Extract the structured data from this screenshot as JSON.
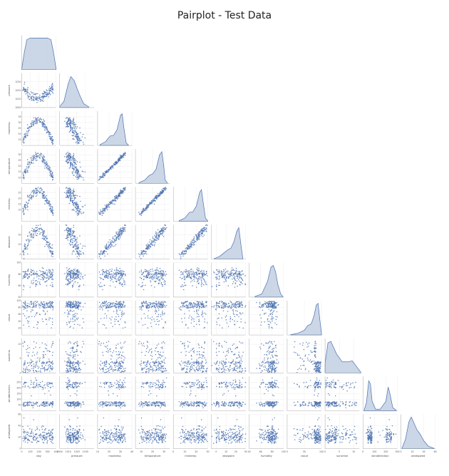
{
  "chart_data": {
    "type": "pairplot",
    "layout": "corner",
    "title": "Pairplot - Test Data",
    "variables": [
      "day",
      "pressure",
      "maxtemp",
      "temparature",
      "mintemp",
      "dewpoint",
      "humidity",
      "cloud",
      "sunshine",
      "winddirection",
      "windspeed"
    ],
    "ranges": {
      "day": [
        0,
        400
      ],
      "pressure": [
        1000,
        1040
      ],
      "maxtemp": [
        10,
        40
      ],
      "temparature": [
        5,
        35
      ],
      "mintemp": [
        0,
        30
      ],
      "dewpoint": [
        -5,
        30
      ],
      "humidity": [
        40,
        100
      ],
      "cloud": [
        0,
        100
      ],
      "sunshine": [
        0,
        12
      ],
      "winddirection": [
        0,
        300
      ],
      "windspeed": [
        0,
        60
      ]
    },
    "x_ticks": {
      "day": [
        0,
        100,
        200,
        300,
        400
      ],
      "pressure": [
        1000,
        1010,
        1020,
        1030
      ],
      "maxtemp": [
        10,
        20,
        30,
        40
      ],
      "temparature": [
        10,
        20,
        30
      ],
      "mintemp": [
        0,
        10,
        20,
        30
      ],
      "dewpoint": [
        0,
        10,
        20,
        30
      ],
      "humidity": [
        40,
        60,
        80,
        100
      ],
      "cloud": [
        0,
        50,
        100
      ],
      "sunshine": [
        0,
        5,
        10
      ],
      "winddirection": [
        0,
        100,
        200,
        300
      ],
      "windspeed": [
        0,
        20,
        40,
        60
      ]
    },
    "y_ticks": {
      "pressure": [
        1000,
        1010,
        1020,
        1030
      ],
      "maxtemp": [
        15,
        20,
        25,
        30,
        35
      ],
      "temparature": [
        10,
        15,
        20,
        25,
        30
      ],
      "mintemp": [
        10,
        15,
        20,
        25
      ],
      "dewpoint": [
        0,
        10,
        20
      ],
      "humidity": [
        40,
        60,
        80,
        100
      ],
      "cloud": [
        20,
        40,
        60,
        80,
        100
      ],
      "sunshine": [
        0,
        5,
        10
      ],
      "winddirection": [
        50,
        100,
        150,
        200,
        250
      ],
      "windspeed": [
        0,
        20,
        40,
        60
      ]
    },
    "diagonal_kde": {
      "day": [
        [
          0,
          0.02
        ],
        [
          30,
          0.55
        ],
        [
          60,
          0.95
        ],
        [
          100,
          1.0
        ],
        [
          200,
          1.0
        ],
        [
          300,
          1.0
        ],
        [
          340,
          0.95
        ],
        [
          370,
          0.55
        ],
        [
          400,
          0.02
        ]
      ],
      "pressure": [
        [
          1000,
          0.03
        ],
        [
          1005,
          0.2
        ],
        [
          1010,
          0.75
        ],
        [
          1013,
          0.98
        ],
        [
          1017,
          0.85
        ],
        [
          1020,
          0.62
        ],
        [
          1024,
          0.35
        ],
        [
          1028,
          0.12
        ],
        [
          1034,
          0.02
        ]
      ],
      "maxtemp": [
        [
          12,
          0.02
        ],
        [
          17,
          0.12
        ],
        [
          21,
          0.3
        ],
        [
          24,
          0.32
        ],
        [
          27,
          0.5
        ],
        [
          30,
          0.95
        ],
        [
          31.5,
          1.0
        ],
        [
          33,
          0.55
        ],
        [
          35,
          0.08
        ],
        [
          37,
          0.01
        ]
      ],
      "temparature": [
        [
          8,
          0.02
        ],
        [
          13,
          0.1
        ],
        [
          17,
          0.25
        ],
        [
          20,
          0.3
        ],
        [
          23,
          0.45
        ],
        [
          26,
          0.9
        ],
        [
          28,
          1.0
        ],
        [
          29.5,
          0.6
        ],
        [
          31,
          0.1
        ],
        [
          33,
          0.01
        ]
      ],
      "mintemp": [
        [
          5,
          0.02
        ],
        [
          10,
          0.1
        ],
        [
          14,
          0.28
        ],
        [
          17,
          0.3
        ],
        [
          20,
          0.48
        ],
        [
          23,
          0.92
        ],
        [
          24.5,
          1.0
        ],
        [
          26,
          0.6
        ],
        [
          28,
          0.1
        ],
        [
          30,
          0.01
        ]
      ],
      "dewpoint": [
        [
          -2,
          0.02
        ],
        [
          3,
          0.08
        ],
        [
          8,
          0.2
        ],
        [
          12,
          0.3
        ],
        [
          15,
          0.35
        ],
        [
          18,
          0.55
        ],
        [
          21,
          0.88
        ],
        [
          23,
          1.0
        ],
        [
          25,
          0.5
        ],
        [
          27,
          0.05
        ]
      ],
      "humidity": [
        [
          50,
          0.02
        ],
        [
          62,
          0.1
        ],
        [
          72,
          0.5
        ],
        [
          78,
          0.95
        ],
        [
          82,
          1.0
        ],
        [
          86,
          0.8
        ],
        [
          90,
          0.4
        ],
        [
          95,
          0.1
        ],
        [
          99,
          0.01
        ]
      ],
      "cloud": [
        [
          10,
          0.01
        ],
        [
          30,
          0.05
        ],
        [
          50,
          0.15
        ],
        [
          60,
          0.3
        ],
        [
          70,
          0.35
        ],
        [
          78,
          0.6
        ],
        [
          85,
          0.95
        ],
        [
          90,
          1.0
        ],
        [
          95,
          0.5
        ],
        [
          100,
          0.05
        ]
      ],
      "sunshine": [
        [
          0,
          0.3
        ],
        [
          1,
          0.95
        ],
        [
          2,
          1.0
        ],
        [
          4,
          0.6
        ],
        [
          6,
          0.35
        ],
        [
          8,
          0.35
        ],
        [
          9.5,
          0.38
        ],
        [
          11,
          0.2
        ],
        [
          12.5,
          0.02
        ]
      ],
      "winddirection": [
        [
          10,
          0.02
        ],
        [
          30,
          0.25
        ],
        [
          50,
          0.95
        ],
        [
          65,
          0.85
        ],
        [
          80,
          0.3
        ],
        [
          110,
          0.05
        ],
        [
          150,
          0.05
        ],
        [
          200,
          0.3
        ],
        [
          220,
          0.75
        ],
        [
          235,
          0.55
        ],
        [
          260,
          0.1
        ],
        [
          290,
          0.02
        ]
      ],
      "windspeed": [
        [
          2,
          0.02
        ],
        [
          8,
          0.3
        ],
        [
          14,
          0.85
        ],
        [
          18,
          1.0
        ],
        [
          22,
          0.85
        ],
        [
          28,
          0.6
        ],
        [
          34,
          0.45
        ],
        [
          40,
          0.25
        ],
        [
          48,
          0.08
        ],
        [
          58,
          0.01
        ]
      ]
    },
    "grid": true,
    "point_color": "#4c72b0",
    "kde_fill": "#c5d1e4"
  }
}
